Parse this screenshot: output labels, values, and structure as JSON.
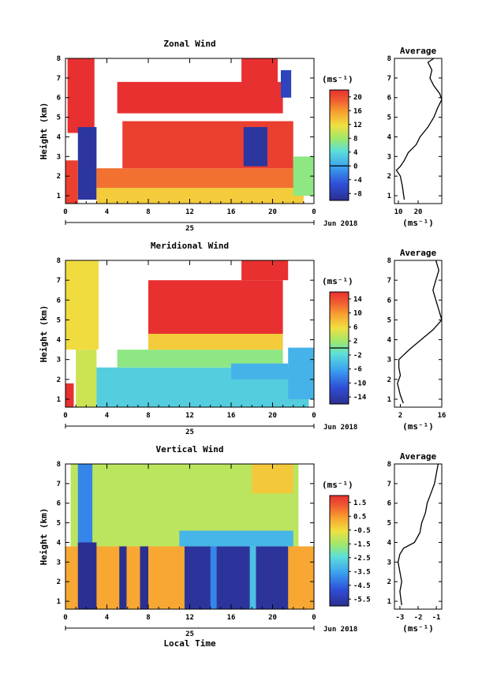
{
  "figure": {
    "day_label": "25",
    "date_label": "Jun 2018",
    "xlabel": "Local Time"
  },
  "chart_data": [
    {
      "type": "heatmap",
      "title": "Zonal Wind",
      "ylabel": "Height (km)",
      "unit": "(ms⁻¹)",
      "xlim": [
        0,
        24
      ],
      "ylim": [
        0.6,
        8
      ],
      "x_ticks": [
        "0",
        "4",
        "8",
        "12",
        "16",
        "20",
        "0"
      ],
      "y_ticks": [
        "1",
        "2",
        "3",
        "4",
        "5",
        "6",
        "7",
        "8"
      ],
      "colorbar": {
        "min": -10,
        "max": 22,
        "ticks": [
          "20",
          "16",
          "12",
          "8",
          "4",
          "0",
          "-4",
          "-8"
        ]
      },
      "regions": [
        {
          "x0": 0.2,
          "x1": 2.8,
          "y0": 4.2,
          "y1": 8.0,
          "v": 22
        },
        {
          "x0": 1.2,
          "x1": 3.0,
          "y0": 0.8,
          "y1": 4.5,
          "v": -9
        },
        {
          "x0": 0.0,
          "x1": 1.2,
          "y0": 0.6,
          "y1": 2.8,
          "v": 21
        },
        {
          "x0": 3.0,
          "x1": 23.0,
          "y0": 0.6,
          "y1": 1.4,
          "v": 13
        },
        {
          "x0": 3.0,
          "x1": 23.0,
          "y0": 1.4,
          "y1": 2.4,
          "v": 18
        },
        {
          "x0": 5.5,
          "x1": 22.0,
          "y0": 2.4,
          "y1": 4.8,
          "v": 21
        },
        {
          "x0": 5.0,
          "x1": 21.0,
          "y0": 5.2,
          "y1": 6.8,
          "v": 22
        },
        {
          "x0": 17.0,
          "x1": 20.5,
          "y0": 6.5,
          "y1": 8.0,
          "v": 22
        },
        {
          "x0": 17.2,
          "x1": 19.5,
          "y0": 2.5,
          "y1": 4.5,
          "v": -9
        },
        {
          "x0": 20.8,
          "x1": 21.8,
          "y0": 6.0,
          "y1": 7.4,
          "v": -7
        },
        {
          "x0": 22.0,
          "x1": 24.0,
          "y0": 1.0,
          "y1": 3.0,
          "v": 7
        }
      ],
      "profile": {
        "title": "Average",
        "xlabel": "(ms⁻¹)",
        "xlim": [
          8,
          32
        ],
        "x_ticks": [
          "10",
          "20"
        ],
        "height": [
          0.8,
          1.5,
          2.0,
          2.3,
          2.5,
          2.8,
          3.2,
          3.6,
          4.0,
          4.5,
          5.0,
          5.5,
          5.9,
          6.2,
          6.6,
          7.0,
          7.4,
          7.8,
          8.0
        ],
        "value": [
          13,
          12,
          11,
          9,
          11,
          13,
          15,
          19,
          21,
          25,
          28,
          30,
          32,
          31,
          28,
          26,
          27,
          25,
          28
        ]
      }
    },
    {
      "type": "heatmap",
      "title": "Meridional Wind",
      "ylabel": "Height (km)",
      "unit": "(ms⁻¹)",
      "xlim": [
        0,
        24
      ],
      "ylim": [
        0.6,
        8
      ],
      "x_ticks": [
        "0",
        "4",
        "8",
        "12",
        "16",
        "20",
        "0"
      ],
      "y_ticks": [
        "1",
        "2",
        "3",
        "4",
        "5",
        "6",
        "7",
        "8"
      ],
      "colorbar": {
        "min": -16,
        "max": 16,
        "ticks": [
          "14",
          "10",
          "6",
          "2",
          "-2",
          "-6",
          "-10",
          "-14"
        ]
      },
      "regions": [
        {
          "x0": 0.0,
          "x1": 3.2,
          "y0": 3.5,
          "y1": 8.0,
          "v": 6
        },
        {
          "x0": 1.0,
          "x1": 3.0,
          "y0": 0.6,
          "y1": 3.5,
          "v": 4
        },
        {
          "x0": 0.0,
          "x1": 0.8,
          "y0": 0.6,
          "y1": 1.8,
          "v": 16
        },
        {
          "x0": 3.0,
          "x1": 23.5,
          "y0": 0.6,
          "y1": 2.6,
          "v": -3
        },
        {
          "x0": 5.0,
          "x1": 21.0,
          "y0": 2.6,
          "y1": 3.5,
          "v": 1
        },
        {
          "x0": 8.0,
          "x1": 21.0,
          "y0": 3.5,
          "y1": 4.3,
          "v": 7
        },
        {
          "x0": 8.0,
          "x1": 21.0,
          "y0": 4.3,
          "y1": 7.0,
          "v": 16
        },
        {
          "x0": 17.0,
          "x1": 21.5,
          "y0": 7.0,
          "y1": 8.0,
          "v": 16
        },
        {
          "x0": 16.0,
          "x1": 21.5,
          "y0": 2.0,
          "y1": 2.8,
          "v": -5
        },
        {
          "x0": 21.5,
          "x1": 24.0,
          "y0": 1.0,
          "y1": 3.6,
          "v": -5
        }
      ],
      "profile": {
        "title": "Average",
        "xlabel": "(ms⁻¹)",
        "xlim": [
          0,
          16
        ],
        "x_ticks": [
          "2",
          "16"
        ],
        "height": [
          0.8,
          1.2,
          1.8,
          2.2,
          2.6,
          3.0,
          3.5,
          4.0,
          4.5,
          5.0,
          5.5,
          6.0,
          6.5,
          7.0,
          7.5,
          8.0
        ],
        "value": [
          3,
          2,
          1,
          2,
          1.5,
          1.5,
          5,
          9,
          13,
          16,
          15,
          14,
          13,
          14,
          15,
          14
        ]
      }
    },
    {
      "type": "heatmap",
      "title": "Vertical Wind",
      "ylabel": "Height (km)",
      "unit": "(ms⁻¹)",
      "xlim": [
        0,
        24
      ],
      "ylim": [
        0.6,
        8
      ],
      "x_ticks": [
        "0",
        "4",
        "8",
        "12",
        "16",
        "20",
        "0"
      ],
      "y_ticks": [
        "1",
        "2",
        "3",
        "4",
        "5",
        "6",
        "7",
        "8"
      ],
      "colorbar": {
        "min": -6.0,
        "max": 2.0,
        "ticks": [
          "1.5",
          "0.5",
          "-0.5",
          "-1.5",
          "-2.5",
          "-3.5",
          "-4.5",
          "-5.5"
        ]
      },
      "regions": [
        {
          "x0": 0.5,
          "x1": 22.5,
          "y0": 3.8,
          "y1": 8.0,
          "v": -1.2
        },
        {
          "x0": 1.2,
          "x1": 2.6,
          "y0": 3.8,
          "y1": 8.0,
          "v": -4.0
        },
        {
          "x0": 0.0,
          "x1": 24.0,
          "y0": 0.6,
          "y1": 3.8,
          "v": 0.3
        },
        {
          "x0": 1.2,
          "x1": 3.0,
          "y0": 0.6,
          "y1": 4.0,
          "v": -6.0
        },
        {
          "x0": 5.2,
          "x1": 5.9,
          "y0": 0.6,
          "y1": 3.8,
          "v": -6.0
        },
        {
          "x0": 7.2,
          "x1": 8.0,
          "y0": 0.6,
          "y1": 3.8,
          "v": -6.0
        },
        {
          "x0": 11.5,
          "x1": 21.5,
          "y0": 0.6,
          "y1": 3.8,
          "v": -5.8
        },
        {
          "x0": 14.0,
          "x1": 14.6,
          "y0": 0.6,
          "y1": 3.8,
          "v": -4.0
        },
        {
          "x0": 17.8,
          "x1": 18.4,
          "y0": 0.6,
          "y1": 3.8,
          "v": -3.0
        },
        {
          "x0": 11.0,
          "x1": 22.0,
          "y0": 3.8,
          "y1": 4.6,
          "v": -3.2
        },
        {
          "x0": 18.0,
          "x1": 22.0,
          "y0": 6.5,
          "y1": 8.0,
          "v": -0.2
        }
      ],
      "profile": {
        "title": "Average",
        "xlabel": "(ms⁻¹)",
        "xlim": [
          -3.3,
          -0.7
        ],
        "x_ticks": [
          "-3",
          "-2",
          "-1"
        ],
        "height": [
          0.8,
          1.5,
          2.0,
          2.5,
          3.0,
          3.4,
          3.7,
          4.0,
          4.5,
          5.0,
          5.5,
          6.0,
          6.5,
          7.0,
          7.5,
          8.0
        ],
        "value": [
          -2.9,
          -3.0,
          -2.9,
          -3.0,
          -3.1,
          -3.0,
          -2.8,
          -2.2,
          -1.9,
          -1.8,
          -1.6,
          -1.5,
          -1.3,
          -1.1,
          -1.0,
          -0.9
        ]
      }
    }
  ]
}
